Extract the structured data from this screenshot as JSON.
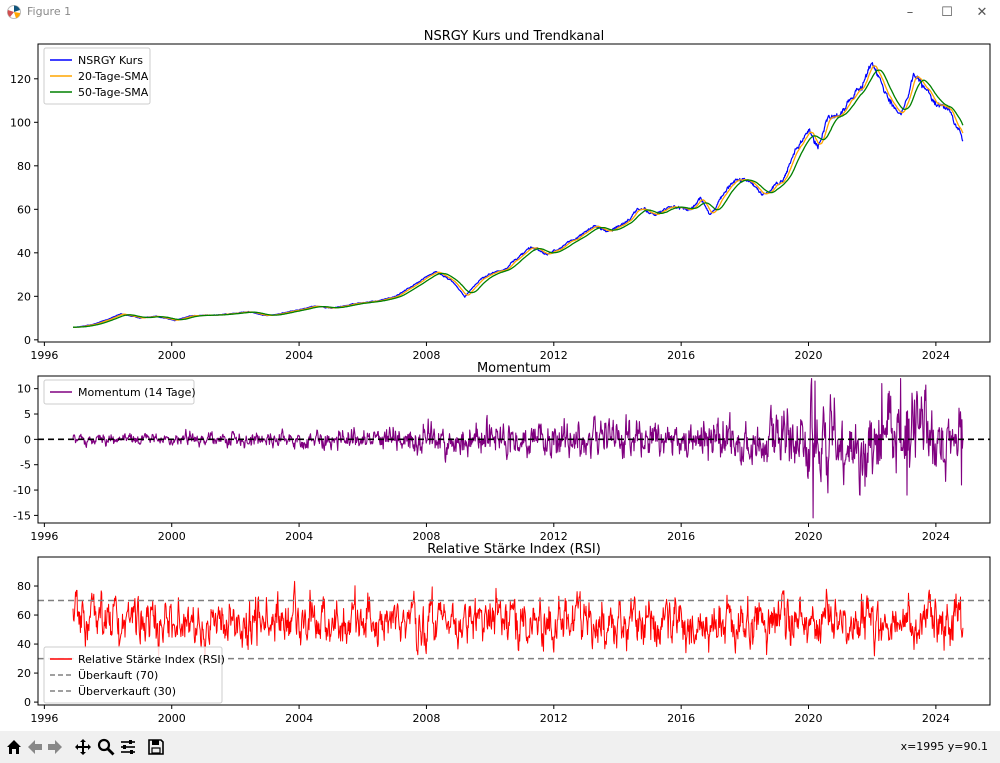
{
  "window": {
    "title": "Figure 1",
    "controls": {
      "minimize": "–",
      "maximize": "☐",
      "close": "✕"
    }
  },
  "toolbar": {
    "icons": [
      "home-icon",
      "back-arrow-icon",
      "forward-arrow-icon",
      "pan-icon",
      "zoom-icon",
      "configure-icon",
      "save-icon"
    ],
    "coords": "x=1995 y=90.1"
  },
  "colors": {
    "price": "#0000ff",
    "sma20": "#ffa500",
    "sma50": "#008000",
    "momentum": "#800080",
    "rsi": "#ff0000",
    "ref": "#808080"
  },
  "chart_data": [
    {
      "type": "line",
      "title": "NSRGY Kurs und Trendkanal",
      "xlim": [
        1995.8,
        2025.7
      ],
      "ylim": [
        -1,
        136
      ],
      "xticks": [
        1996,
        2000,
        2004,
        2008,
        2012,
        2016,
        2020,
        2024
      ],
      "yticks": [
        0,
        20,
        40,
        60,
        80,
        100,
        120
      ],
      "legend": [
        "NSRGY Kurs",
        "20-Tage-SMA",
        "50-Tage-SMA"
      ],
      "legend_position": "upper-left",
      "anchors": [
        [
          1997.0,
          5.8
        ],
        [
          1997.5,
          7.0
        ],
        [
          1998.0,
          9.5
        ],
        [
          1998.4,
          12.0
        ],
        [
          1999.0,
          10.0
        ],
        [
          1999.5,
          10.8
        ],
        [
          2000.1,
          9.0
        ],
        [
          2000.6,
          11.0
        ],
        [
          2001.5,
          11.5
        ],
        [
          2002.4,
          13.0
        ],
        [
          2003.0,
          11.0
        ],
        [
          2003.6,
          12.5
        ],
        [
          2004.5,
          15.5
        ],
        [
          2005.0,
          14.5
        ],
        [
          2005.7,
          16.5
        ],
        [
          2006.5,
          18.0
        ],
        [
          2007.0,
          20.0
        ],
        [
          2007.6,
          25.0
        ],
        [
          2008.3,
          31.5
        ],
        [
          2008.8,
          27.0
        ],
        [
          2009.2,
          20.0
        ],
        [
          2009.7,
          28.0
        ],
        [
          2010.5,
          33.0
        ],
        [
          2011.3,
          43.0
        ],
        [
          2011.8,
          39.0
        ],
        [
          2012.6,
          46.0
        ],
        [
          2013.3,
          52.0
        ],
        [
          2013.8,
          50.0
        ],
        [
          2014.3,
          55.0
        ],
        [
          2014.7,
          61.0
        ],
        [
          2015.2,
          57.0
        ],
        [
          2015.6,
          61.0
        ],
        [
          2016.3,
          60.0
        ],
        [
          2016.6,
          65.0
        ],
        [
          2016.9,
          57.0
        ],
        [
          2017.6,
          73.0
        ],
        [
          2018.2,
          73.0
        ],
        [
          2018.6,
          66.0
        ],
        [
          2019.2,
          74.0
        ],
        [
          2019.6,
          88.0
        ],
        [
          2020.0,
          96.0
        ],
        [
          2020.3,
          88.0
        ],
        [
          2020.6,
          103.0
        ],
        [
          2021.0,
          103.0
        ],
        [
          2021.4,
          112.0
        ],
        [
          2021.7,
          118.0
        ],
        [
          2022.0,
          128.0
        ],
        [
          2022.5,
          110.0
        ],
        [
          2022.9,
          103.0
        ],
        [
          2023.3,
          122.0
        ],
        [
          2023.7,
          115.0
        ],
        [
          2024.0,
          108.0
        ],
        [
          2024.4,
          106.0
        ],
        [
          2024.75,
          97.0
        ],
        [
          2024.85,
          91.5
        ]
      ]
    },
    {
      "type": "line",
      "title": "Momentum",
      "xlim": [
        1995.8,
        2025.7
      ],
      "ylim": [
        -16.5,
        12.5
      ],
      "xticks": [
        1996,
        2000,
        2004,
        2008,
        2012,
        2016,
        2020,
        2024
      ],
      "yticks": [
        10,
        5,
        0,
        -5,
        -10,
        -15
      ],
      "legend": [
        "Momentum (14 Tage)"
      ],
      "legend_position": "upper-left",
      "reference_line": 0,
      "amplitude_by_period": [
        [
          1997,
          1.2
        ],
        [
          2003,
          1.8
        ],
        [
          2007,
          3.0
        ],
        [
          2009,
          4.5
        ],
        [
          2013,
          4.5
        ],
        [
          2016,
          5.0
        ],
        [
          2019,
          6.0
        ],
        [
          2020.2,
          12
        ],
        [
          2021,
          8
        ],
        [
          2022,
          11
        ],
        [
          2023,
          10
        ],
        [
          2024.8,
          7
        ]
      ],
      "extremes": [
        [
          2020.15,
          -15.5
        ],
        [
          2020.2,
          11.5
        ],
        [
          2022.3,
          11.0
        ],
        [
          2022.9,
          12.0
        ],
        [
          2023.1,
          -11.0
        ],
        [
          2024.8,
          -9.0
        ]
      ]
    },
    {
      "type": "line",
      "title": "Relative Stärke Index (RSI)",
      "xlim": [
        1995.8,
        2025.7
      ],
      "ylim": [
        -2,
        100
      ],
      "xticks": [
        1996,
        2000,
        2004,
        2008,
        2012,
        2016,
        2020,
        2024
      ],
      "yticks": [
        0,
        20,
        40,
        60,
        80
      ],
      "legend": [
        "Relative Stärke Index (RSI)",
        "Überkauft (70)",
        "Überverkauft (30)"
      ],
      "legend_position": "lower-left",
      "overbought": 70,
      "oversold": 30,
      "range": [
        3,
        95
      ]
    }
  ]
}
